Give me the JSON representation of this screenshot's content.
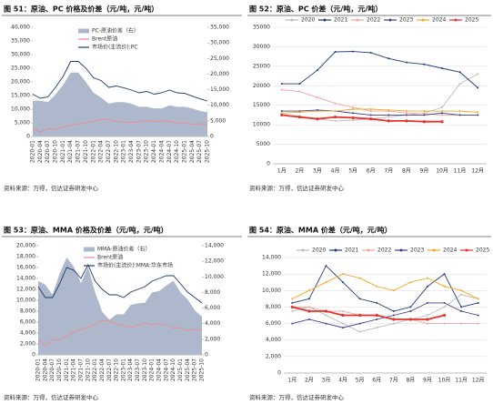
{
  "chart_data": [
    {
      "type": "combo",
      "title": "图 51：原油、PC 价格及价差（元/吨，元/吨）",
      "source": "资料来源：万得，信达证券研发中心",
      "categories": [
        "2020-01",
        "2020-04",
        "2020-07",
        "2020-10",
        "2021-01",
        "2021-04",
        "2021-07",
        "2021-10",
        "2022-01",
        "2022-04",
        "2022-07",
        "2022-10",
        "2023-01",
        "2023-04",
        "2023-07",
        "2023-10",
        "2024-01",
        "2024-04",
        "2024-07",
        "2024-10",
        "2025-01",
        "2025-04",
        "2025-07",
        "2025-10"
      ],
      "ylim": [
        0,
        40000
      ],
      "yticks": [
        0,
        {
          "value": 5000,
          "label": "5,000"
        },
        {
          "value": 10000,
          "label": "10,000"
        },
        {
          "value": 15000,
          "label": "15,000"
        },
        {
          "value": 20000,
          "label": "20,000"
        },
        {
          "value": 25000,
          "label": "25,000"
        },
        {
          "value": 30000,
          "label": "30,000"
        },
        {
          "value": 35000,
          "label": "35,000"
        },
        {
          "value": 40000,
          "label": "40,000"
        }
      ],
      "y2lim": [
        0,
        35000
      ],
      "y2ticks": [
        0,
        {
          "value": 5000,
          "label": "5,000"
        },
        {
          "value": 10000,
          "label": "10,000"
        },
        {
          "value": 15000,
          "label": "15,000"
        },
        {
          "value": 20000,
          "label": "20,000"
        },
        {
          "value": 25000,
          "label": "25,000"
        },
        {
          "value": 30000,
          "label": "30,000"
        },
        {
          "value": 35000,
          "label": "35,000"
        }
      ],
      "series": [
        {
          "name": "PC-原油价差（右）",
          "kind": "area",
          "axis": "y2",
          "color": "#aeb8cc",
          "values": [
            11500,
            11500,
            11000,
            13500,
            16500,
            20500,
            20500,
            17500,
            14000,
            12500,
            10500,
            11000,
            11000,
            10500,
            9500,
            9500,
            9000,
            9000,
            10000,
            9500,
            9500,
            9000,
            8200,
            7800
          ]
        },
        {
          "name": "Brent原油",
          "kind": "line",
          "color": "#f08a8a",
          "values": [
            3000,
            1600,
            2800,
            2700,
            3400,
            4100,
            4700,
            5100,
            5600,
            6300,
            6200,
            5600,
            5300,
            5100,
            5400,
            5800,
            5500,
            5700,
            5500,
            4900,
            5000,
            4400,
            4700,
            4500
          ]
        },
        {
          "name": "市场价(主流价):PC",
          "kind": "line",
          "color": "#1f3a6e",
          "values": [
            15500,
            14000,
            14500,
            18000,
            22000,
            27500,
            27500,
            25000,
            21500,
            20500,
            18000,
            18500,
            17800,
            17000,
            16000,
            16500,
            15500,
            16000,
            17000,
            16000,
            15800,
            14800,
            13800,
            13000
          ]
        }
      ]
    },
    {
      "type": "line",
      "title": "图 52：原油、PC 价差（元/吨，元/吨）",
      "source": "资料来源：万得，信达证券研发中心",
      "categories": [
        "1月",
        "2月",
        "3月",
        "4月",
        "5月",
        "6月",
        "7月",
        "8月",
        "9月",
        "10月",
        "11月",
        "12月"
      ],
      "ylim": [
        0,
        35000
      ],
      "yticks": [
        0,
        5000,
        10000,
        15000,
        20000,
        25000,
        30000,
        35000
      ],
      "series": [
        {
          "name": "2020",
          "color": "#bbbbbb",
          "values": [
            12500,
            12200,
            11500,
            11000,
            11200,
            11500,
            12000,
            12500,
            13000,
            14500,
            20500,
            23000
          ]
        },
        {
          "name": "2021",
          "color": "#1f3a78",
          "values": [
            20500,
            20500,
            24000,
            28700,
            28800,
            28500,
            27000,
            26000,
            25500,
            24500,
            23500,
            19500
          ]
        },
        {
          "name": "2022",
          "color": "#f4a3a3",
          "values": [
            19000,
            18500,
            17000,
            15500,
            14500,
            13500,
            13500,
            13000,
            12800,
            12500,
            12500,
            12500
          ]
        },
        {
          "name": "2023",
          "color": "#3d3d8f",
          "values": [
            13500,
            13500,
            13800,
            13500,
            13000,
            12500,
            12500,
            12500,
            12500,
            13000,
            12500,
            12500
          ]
        },
        {
          "name": "2024",
          "color": "#f5a623",
          "values": [
            13000,
            13200,
            13500,
            13500,
            14000,
            14000,
            13800,
            13500,
            13500,
            13500,
            13500,
            13200
          ]
        },
        {
          "name": "2025",
          "color": "#e8312a",
          "values": [
            12500,
            12000,
            11500,
            12000,
            11800,
            11500,
            11000,
            11000,
            10800,
            10800,
            null,
            null
          ]
        }
      ]
    },
    {
      "type": "combo",
      "title": "图 53：原油、MMA 价格及价差（元/吨，元/吨）",
      "source": "资料来源：万得，信达证券研发中心",
      "categories": [
        "2020-01",
        "2020-04",
        "2020-07",
        "2020-10",
        "2021-01",
        "2021-04",
        "2021-07",
        "2021-10",
        "2022-01",
        "2022-04",
        "2022-07",
        "2022-10",
        "2023-01",
        "2023-04",
        "2023-07",
        "2023-10",
        "2024-01",
        "2024-04",
        "2024-07",
        "2024-10",
        "2025-01",
        "2025-04",
        "2025-07",
        "2025-10"
      ],
      "ylim": [
        0,
        20000
      ],
      "yticks": [
        0,
        {
          "value": 2000,
          "label": "2,000"
        },
        {
          "value": 4000,
          "label": "4,000"
        },
        {
          "value": 6000,
          "label": "6,000"
        },
        {
          "value": 8000,
          "label": "8,000"
        },
        {
          "value": 10000,
          "label": "10,000"
        },
        {
          "value": 12000,
          "label": "12,000"
        },
        {
          "value": 14000,
          "label": "14,000"
        },
        {
          "value": 16000,
          "label": "16,000"
        },
        {
          "value": 18000,
          "label": "18,000"
        },
        {
          "value": 20000,
          "label": "20,000"
        }
      ],
      "y2lim": [
        0,
        14000
      ],
      "y2ticks": [
        0,
        {
          "value": 2000,
          "label": "2,000"
        },
        {
          "value": 4000,
          "label": "4,000"
        },
        {
          "value": 6000,
          "label": "6,000"
        },
        {
          "value": 8000,
          "label": "8,000"
        },
        {
          "value": 10000,
          "label": "10,000"
        },
        {
          "value": 12000,
          "label": "12,000"
        },
        {
          "value": 14000,
          "label": "14,000"
        }
      ],
      "series": [
        {
          "name": "MMA-原油价差（右）",
          "kind": "area",
          "axis": "y2",
          "color": "#aeb8cc",
          "values": [
            9500,
            9000,
            7700,
            10400,
            12500,
            11300,
            9200,
            11300,
            8000,
            5500,
            4500,
            5200,
            5200,
            6400,
            6600,
            6700,
            8000,
            8200,
            8900,
            9500,
            8000,
            7100,
            5700,
            4900
          ]
        },
        {
          "name": "Brent原油",
          "kind": "line",
          "color": "#f08a8a",
          "values": [
            3000,
            1600,
            2800,
            2700,
            3400,
            4100,
            4700,
            5100,
            5600,
            6300,
            6200,
            5600,
            5300,
            5100,
            5400,
            5800,
            5500,
            5700,
            5500,
            4900,
            5000,
            4400,
            4700,
            4500
          ]
        },
        {
          "name": "市场价(主流价):MMA:华东市场",
          "kind": "line",
          "color": "#1f3a6e",
          "values": [
            12500,
            10500,
            10500,
            13000,
            16000,
            15500,
            14000,
            16500,
            13500,
            12000,
            11000,
            11000,
            10500,
            11500,
            12000,
            12500,
            13500,
            14000,
            14500,
            14500,
            13000,
            11500,
            10500,
            9500
          ]
        }
      ]
    },
    {
      "type": "line",
      "title": "图 54：原油、MMA 价差（元/吨，元/吨）",
      "source": "资料来源：万得，信达证券研发中心",
      "categories": [
        "1月",
        "2月",
        "3月",
        "4月",
        "5月",
        "6月",
        "7月",
        "8月",
        "9月",
        "10月",
        "11月",
        "12月"
      ],
      "ylim": [
        0,
        14000
      ],
      "yticks": [
        0,
        {
          "value": 2000,
          "label": "2,000"
        },
        {
          "value": 4000,
          "label": "4,000"
        },
        {
          "value": 6000,
          "label": "6,000"
        },
        {
          "value": 8000,
          "label": "8,000"
        },
        {
          "value": 10000,
          "label": "10,000"
        },
        {
          "value": 12000,
          "label": "12,000"
        },
        {
          "value": 14000,
          "label": "14,000"
        }
      ],
      "series": [
        {
          "name": "2020",
          "color": "#bbbbbb",
          "values": [
            7500,
            8000,
            7000,
            6000,
            5000,
            5500,
            6000,
            6500,
            7000,
            8000,
            9500,
            9000
          ]
        },
        {
          "name": "2021",
          "color": "#1f3a78",
          "values": [
            8500,
            9000,
            13000,
            11000,
            9000,
            8500,
            7500,
            8000,
            10500,
            12000,
            8000,
            8500
          ]
        },
        {
          "name": "2022",
          "color": "#f4a3a3",
          "values": [
            8000,
            8000,
            7500,
            7500,
            7000,
            7000,
            6500,
            6500,
            6000,
            6000,
            6000,
            6000
          ]
        },
        {
          "name": "2023",
          "color": "#3d3d8f",
          "values": [
            6000,
            6500,
            6000,
            5500,
            6000,
            6500,
            7000,
            7500,
            8500,
            8500,
            7500,
            7000
          ]
        },
        {
          "name": "2024",
          "color": "#f5a623",
          "values": [
            9000,
            10000,
            11000,
            12000,
            11500,
            10500,
            10000,
            11000,
            11500,
            10500,
            10000,
            9000
          ]
        },
        {
          "name": "2025",
          "color": "#e8312a",
          "values": [
            8000,
            7500,
            7500,
            7000,
            7000,
            7000,
            6500,
            6500,
            6500,
            7000,
            null,
            null
          ]
        }
      ]
    }
  ]
}
